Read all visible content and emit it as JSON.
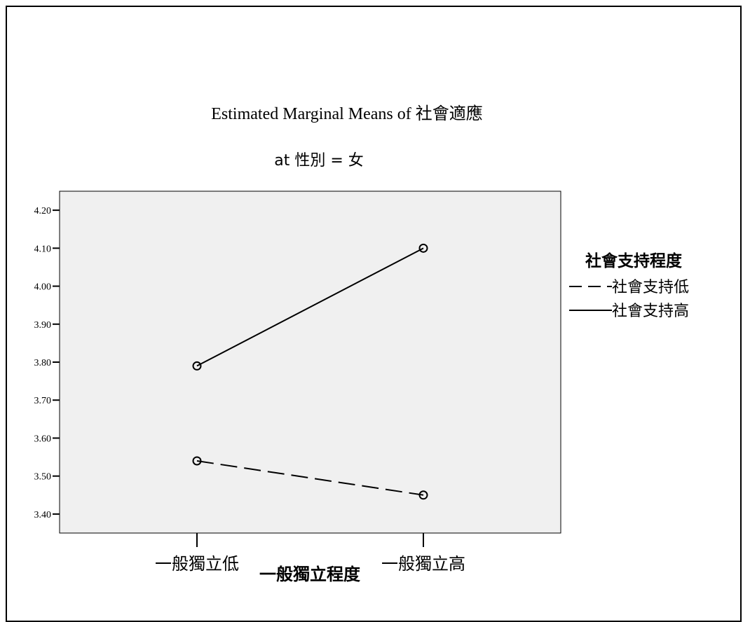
{
  "chart_data": {
    "type": "line",
    "title": "Estimated Marginal Means of 社會適應",
    "subtitle": "at 性別 = 女",
    "xlabel": "一般獨立程度",
    "ylabel": "",
    "categories": [
      "一般獨立低",
      "一般獨立高"
    ],
    "yticks": [
      "3.40",
      "3.50",
      "3.60",
      "3.70",
      "3.80",
      "3.90",
      "4.00",
      "4.10",
      "4.20"
    ],
    "ylim": [
      3.35,
      4.25
    ],
    "legend_title": "社會支持程度",
    "legend_position": "right",
    "grid": false,
    "series": [
      {
        "name": "社會支持低",
        "values": [
          3.54,
          3.45
        ],
        "style": "dashed"
      },
      {
        "name": "社會支持高",
        "values": [
          3.79,
          4.1
        ],
        "style": "solid"
      }
    ],
    "colors": {
      "plot_background": "#f0f0f0",
      "line": "#000000"
    }
  }
}
